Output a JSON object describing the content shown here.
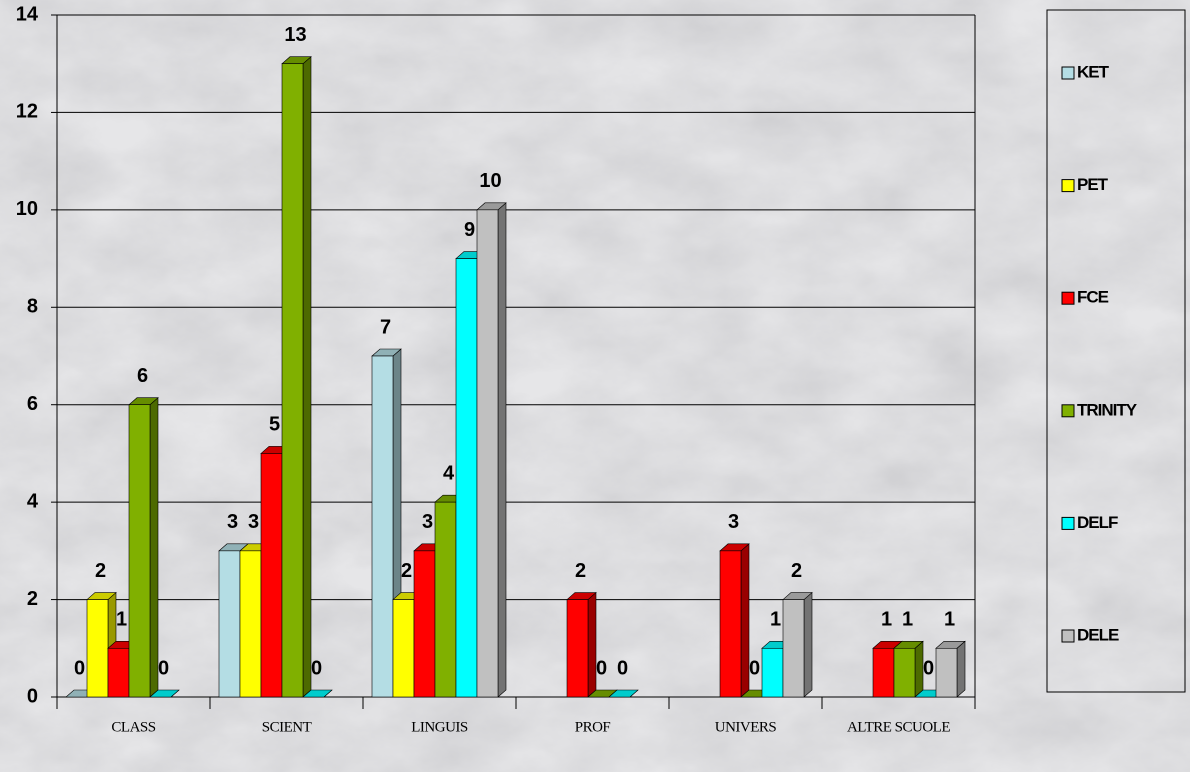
{
  "chart_data": {
    "type": "bar",
    "categories": [
      "CLASS",
      "SCIENT",
      "LINGUIS",
      "PROF",
      "UNIVERS",
      "ALTRE SCUOLE"
    ],
    "series": [
      {
        "name": "KET",
        "color": "#b4dde4",
        "values": [
          0,
          3,
          7,
          null,
          null,
          null
        ]
      },
      {
        "name": "PET",
        "color": "#ffff00",
        "values": [
          2,
          3,
          2,
          null,
          null,
          null
        ]
      },
      {
        "name": "FCE",
        "color": "#ff0000",
        "values": [
          1,
          5,
          3,
          2,
          3,
          1
        ]
      },
      {
        "name": "TRINITY",
        "color": "#80b000",
        "values": [
          6,
          13,
          4,
          0,
          0,
          1
        ]
      },
      {
        "name": "DELF",
        "color": "#00ffff",
        "values": [
          0,
          0,
          9,
          0,
          1,
          0
        ]
      },
      {
        "name": "DELE",
        "color": "#c0c0c0",
        "values": [
          null,
          null,
          10,
          null,
          2,
          1
        ]
      }
    ],
    "ylim": [
      0,
      14
    ],
    "yticks": [
      0,
      2,
      4,
      6,
      8,
      10,
      12,
      14
    ],
    "grid": true,
    "legend": "right"
  }
}
